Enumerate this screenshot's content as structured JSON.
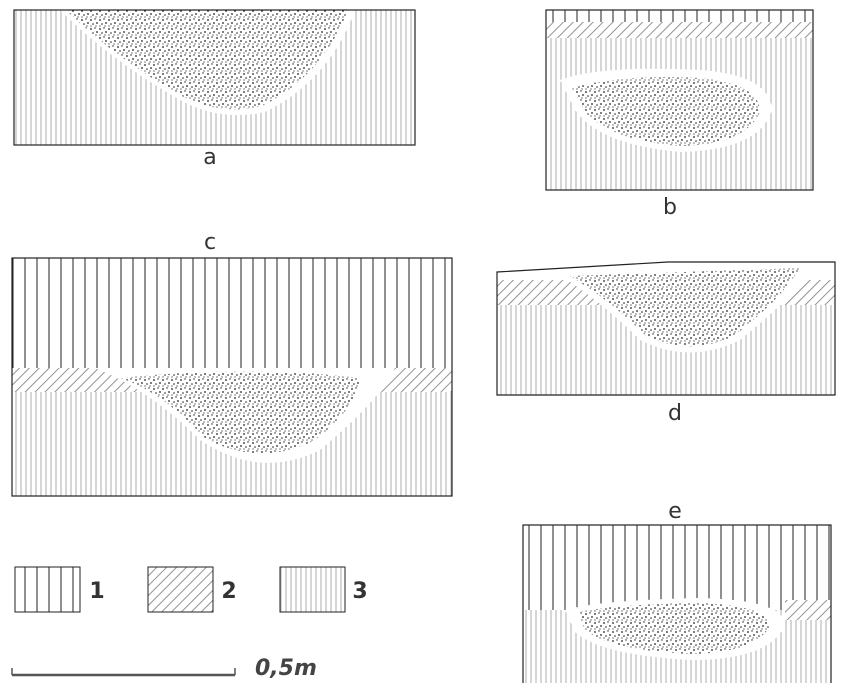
{
  "panels": [
    {
      "label": "a"
    },
    {
      "label": "b"
    },
    {
      "label": "c"
    },
    {
      "label": "d"
    },
    {
      "label": "e"
    }
  ],
  "legend": [
    {
      "label": "1"
    },
    {
      "label": "2"
    },
    {
      "label": "3"
    }
  ],
  "scale": {
    "label": "0,5m"
  }
}
